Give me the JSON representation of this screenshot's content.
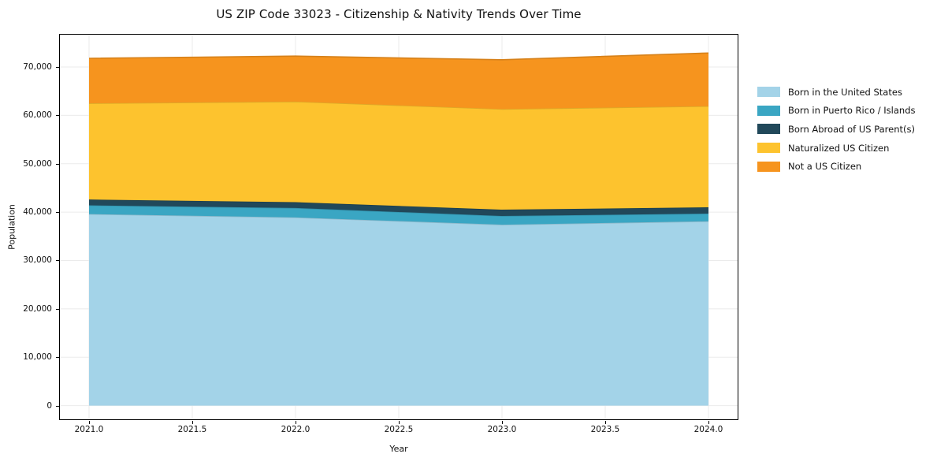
{
  "header": {
    "title": "US ZIP Code 33023 - Citizenship & Nativity Trends Over Time"
  },
  "axes": {
    "xlabel": "Year",
    "ylabel": "Population",
    "x_ticks": [
      {
        "v": 2021.0,
        "label": "2021.0"
      },
      {
        "v": 2021.5,
        "label": "2021.5"
      },
      {
        "v": 2022.0,
        "label": "2022.0"
      },
      {
        "v": 2022.5,
        "label": "2022.5"
      },
      {
        "v": 2023.0,
        "label": "2023.0"
      },
      {
        "v": 2023.5,
        "label": "2023.5"
      },
      {
        "v": 2024.0,
        "label": "2024.0"
      }
    ],
    "y_ticks": [
      {
        "v": 0,
        "label": "0"
      },
      {
        "v": 10000,
        "label": "10,000"
      },
      {
        "v": 20000,
        "label": "20,000"
      },
      {
        "v": 30000,
        "label": "30,000"
      },
      {
        "v": 40000,
        "label": "40,000"
      },
      {
        "v": 50000,
        "label": "50,000"
      },
      {
        "v": 60000,
        "label": "60,000"
      },
      {
        "v": 70000,
        "label": "70,000"
      }
    ]
  },
  "legend": {
    "position": "outside-right",
    "items": [
      "Born in the United States",
      "Born in Puerto Rico / Islands",
      "Born Abroad of US Parent(s)",
      "Naturalized US Citizen",
      "Not a US Citizen"
    ]
  },
  "colors": {
    "background": "#ffffff",
    "spine": "#000000",
    "grid": "#ebebeb",
    "text": "#111111"
  },
  "chart_data": {
    "type": "area",
    "stacked": true,
    "title": "US ZIP Code 33023 - Citizenship & Nativity Trends Over Time",
    "xlabel": "Year",
    "ylabel": "Population",
    "x": [
      2021,
      2022,
      2023,
      2024
    ],
    "series": [
      {
        "name": "Born in the United States",
        "color": "#a3d3e8",
        "values": [
          39600,
          38900,
          37400,
          38100
        ]
      },
      {
        "name": "Born in Puerto Rico / Islands",
        "color": "#3aa6c3",
        "values": [
          1800,
          1950,
          1800,
          1600
        ]
      },
      {
        "name": "Born Abroad of US Parent(s)",
        "color": "#21485a",
        "values": [
          1200,
          1200,
          1300,
          1300
        ]
      },
      {
        "name": "Naturalized US Citizen",
        "color": "#fdc32e",
        "values": [
          19900,
          20800,
          20800,
          20900
        ]
      },
      {
        "name": "Not a US Citizen",
        "color": "#f6941e",
        "values": [
          9300,
          9400,
          10200,
          11000
        ]
      }
    ],
    "stack_totals": [
      71800,
      72250,
      71500,
      72900
    ],
    "xlim": [
      2020.855,
      2024.145
    ],
    "ylim": [
      -3000,
      76850
    ],
    "grid": true,
    "legend_position": "outside-right"
  }
}
